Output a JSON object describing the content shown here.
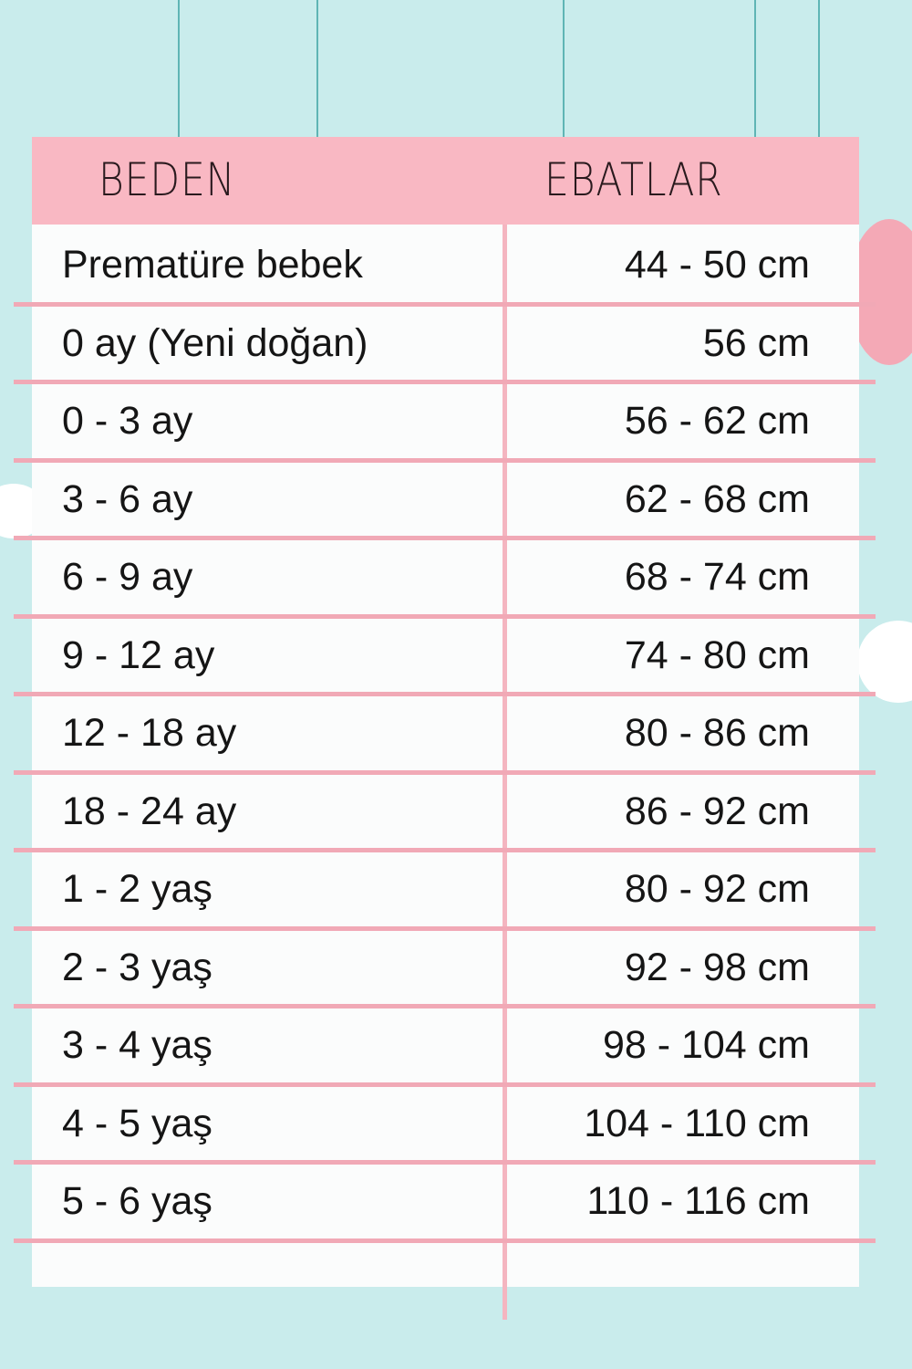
{
  "header": {
    "col1": "BEDEN",
    "col2": "EBATLAR"
  },
  "rows": [
    {
      "size": "Prematüre bebek",
      "measure": "44 - 50 cm"
    },
    {
      "size": "0 ay (Yeni doğan)",
      "measure": "56 cm"
    },
    {
      "size": "0 - 3 ay",
      "measure": "56 - 62 cm"
    },
    {
      "size": "3 - 6 ay",
      "measure": "62 - 68 cm"
    },
    {
      "size": "6 - 9 ay",
      "measure": "68 - 74 cm"
    },
    {
      "size": "9 - 12 ay",
      "measure": "74 - 80 cm"
    },
    {
      "size": "12 - 18 ay",
      "measure": "80 - 86 cm"
    },
    {
      "size": "18 - 24 ay",
      "measure": "86 - 92 cm"
    },
    {
      "size": "1 - 2 yaş",
      "measure": "80 - 92 cm"
    },
    {
      "size": "2 - 3 yaş",
      "measure": "92 - 98 cm"
    },
    {
      "size": "3 - 4 yaş",
      "measure": "98 - 104 cm"
    },
    {
      "size": "4 - 5 yaş",
      "measure": "104 - 110 cm"
    },
    {
      "size": "5 - 6 yaş",
      "measure": "110 - 116 cm"
    }
  ],
  "colors": {
    "background": "#c9ecec",
    "header": "#f9b8c3",
    "rule": "#f1a9b6"
  }
}
